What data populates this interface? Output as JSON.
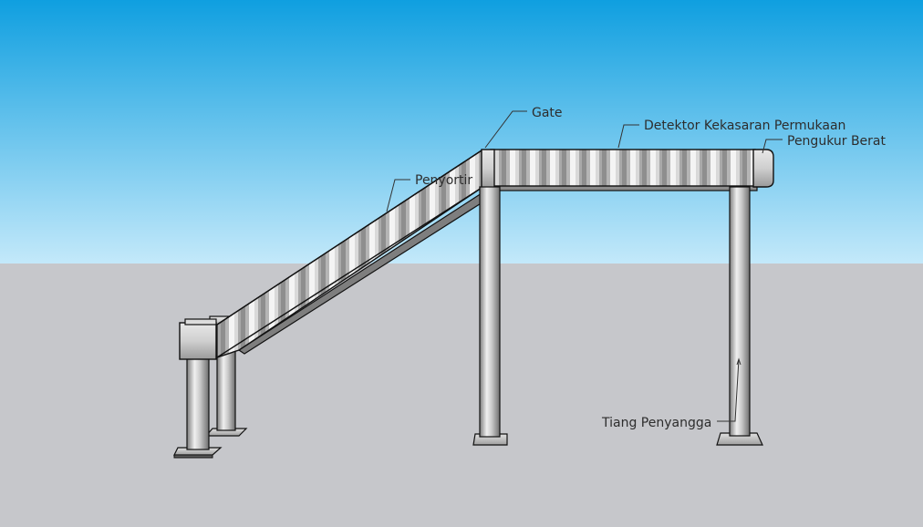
{
  "labels": {
    "gate": "Gate",
    "detektor": "Detektor Kekasaran Permukaan",
    "pengukur": "Pengukur Berat",
    "penyortir": "Penyortir",
    "tiang": "Tiang Penyangga"
  },
  "colors": {
    "sky_top": "#0f9fe0",
    "sky_bottom": "#bfe7f9",
    "ground": "#c6c7cb",
    "metal_light": "#f2f2f2",
    "metal_dark": "#8a8a8a",
    "outline": "#111111"
  }
}
